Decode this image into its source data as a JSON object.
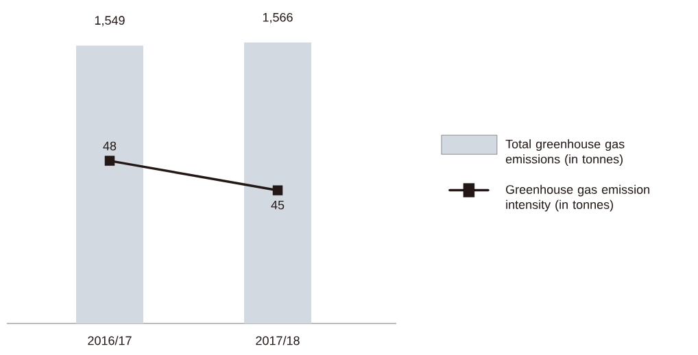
{
  "chart_data": {
    "type": "bar",
    "categories": [
      "2016/17",
      "2017/18"
    ],
    "series": [
      {
        "name": "Total greenhouse gas emissions (in tonnes)",
        "color": "#d3d9e1",
        "values": [
          1549,
          1566
        ],
        "value_labels": [
          "1,549",
          "1,566"
        ]
      },
      {
        "name": "Greenhouse gas emission intensity (in tonnes)",
        "type": "line",
        "axis": "y2",
        "color": "#231815",
        "marker": "square",
        "values": [
          48,
          45
        ],
        "value_labels": [
          "48",
          "45"
        ]
      }
    ],
    "legend": "right"
  }
}
